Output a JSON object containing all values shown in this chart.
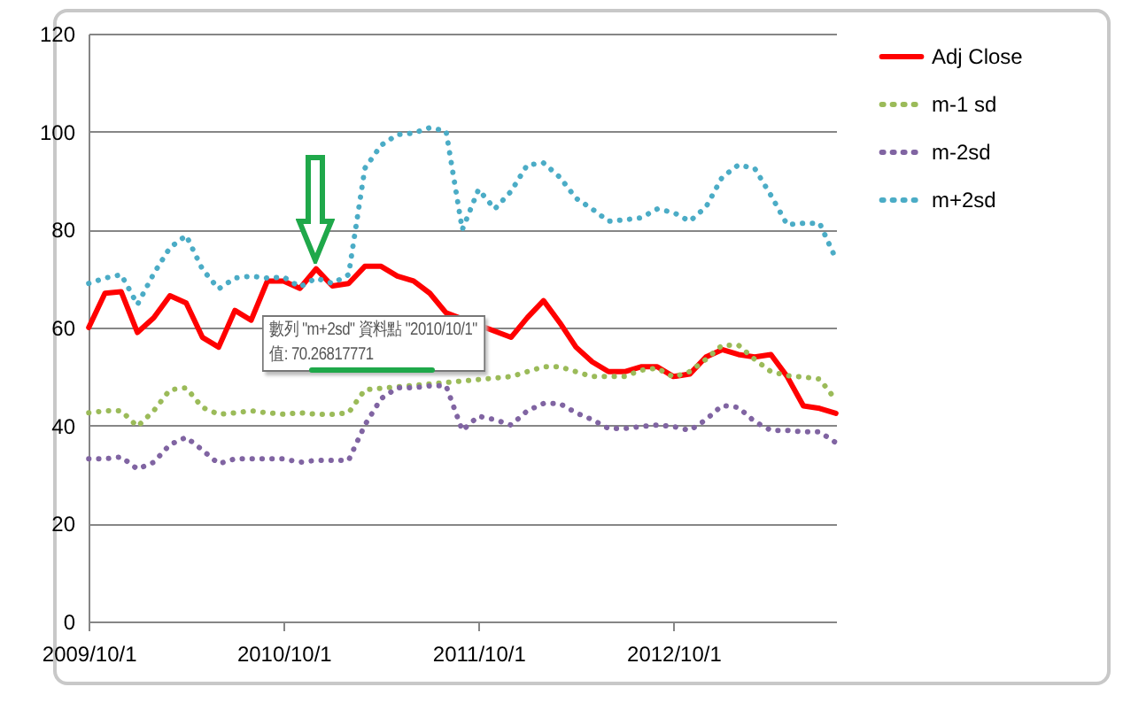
{
  "chart_data": {
    "type": "line",
    "categories": [
      "2009/10/1",
      null,
      null,
      null,
      null,
      null,
      null,
      null,
      null,
      null,
      null,
      null,
      "2010/10/1",
      null,
      null,
      null,
      null,
      null,
      null,
      null,
      null,
      null,
      null,
      null,
      "2011/10/1",
      null,
      null,
      null,
      null,
      null,
      null,
      null,
      null,
      null,
      null,
      null,
      "2012/10/1",
      null,
      null,
      null,
      null,
      null,
      null,
      null,
      null,
      null,
      null
    ],
    "ylim": [
      0,
      120
    ],
    "yticks": [
      0,
      20,
      40,
      60,
      80,
      100,
      120
    ],
    "grid": "y",
    "legend": "right",
    "series": [
      {
        "name": "Adj Close",
        "color": "#ff0000",
        "line_style": "solid",
        "values": [
          60,
          67,
          67.3,
          59,
          62,
          66.5,
          65,
          58,
          56,
          63.5,
          61.5,
          69.5,
          69.5,
          68,
          72,
          68.5,
          69,
          72.5,
          72.5,
          70.5,
          69.5,
          67,
          63,
          null,
          null,
          null,
          58,
          62,
          65.5,
          61,
          56,
          53,
          51,
          51,
          52,
          52,
          50,
          50.5,
          54,
          55.5,
          54.5,
          54,
          54.5,
          50,
          44,
          43.5,
          42.5
        ]
      },
      {
        "name": "m-1 sd",
        "color": "#9bbb59",
        "line_style": "dotted",
        "values": [
          42.6,
          43,
          43,
          39.8,
          43,
          47.3,
          47.7,
          43.7,
          42.3,
          42.6,
          43,
          42.6,
          42.3,
          42.6,
          42.3,
          42.3,
          42.6,
          47.3,
          null,
          null,
          null,
          null,
          null,
          null,
          null,
          null,
          50,
          51,
          52,
          52,
          51,
          50,
          50,
          50,
          51.3,
          51.7,
          49.9,
          51,
          53.5,
          56.4,
          56.4,
          53.5,
          51,
          50.2,
          49.9,
          49.5,
          45.2
        ]
      },
      {
        "name": "m-2sd",
        "color": "#8064a2",
        "line_style": "dotted",
        "values": [
          33.2,
          33.2,
          33.6,
          31.1,
          32.5,
          36.1,
          37.6,
          35,
          32.2,
          33.2,
          33.2,
          33.2,
          33.2,
          32.5,
          32.9,
          32.9,
          32.9,
          40.1,
          45.5,
          47.7,
          47.7,
          48.1,
          48.1,
          39,
          41.9,
          41.2,
          40.1,
          43,
          44.5,
          44.5,
          42.6,
          41.2,
          39.4,
          39.4,
          39.8,
          40.1,
          39.8,
          39,
          41.2,
          44.1,
          43.7,
          40.8,
          39,
          39,
          38.7,
          38.7,
          36.5
        ]
      },
      {
        "name": "m+2sd",
        "color": "#4bacc6",
        "line_style": "dotted",
        "values": [
          69,
          70.1,
          70.8,
          64.7,
          71,
          76.3,
          78.8,
          71.9,
          67.9,
          70.1,
          70.5,
          70.1,
          70.3,
          68.3,
          70.1,
          69,
          70.8,
          92.5,
          97.2,
          99.4,
          99.7,
          100.8,
          100.1,
          80,
          88.2,
          84.2,
          87.8,
          93.2,
          93.6,
          90.7,
          86.4,
          84.2,
          81.7,
          82,
          82.4,
          84.2,
          83.5,
          81.7,
          84.6,
          90.7,
          93.2,
          92.5,
          87,
          81,
          81.3,
          81.3,
          74
        ]
      }
    ],
    "annotations": [
      {
        "text": "數列 \"m+2sd\" 資料點 \"2010/10/1\"\n值: 70.26817771",
        "x": "2010/10/1",
        "y": 70.26817771
      }
    ]
  }
}
